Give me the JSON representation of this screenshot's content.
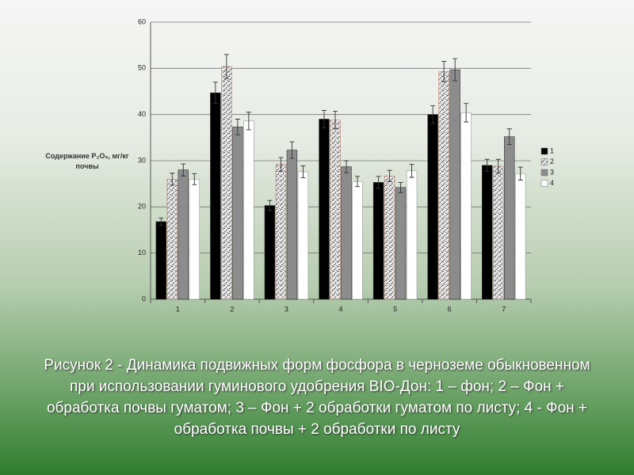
{
  "chart_data": {
    "type": "bar",
    "y_label": "Содержание P₂O₅, мг/кг почвы",
    "caption": "Рисунок 2 - Динамика подвижных форм фосфора в черноземе обыкновенном при использовании гуминового удобрения BIO-Дон: 1 – фон; 2 – Фон + обработка почвы гуматом;  3 – Фон + 2 обработки гуматом по листу; 4 - Фон + обработка почвы + 2 обработки по листу",
    "categories": [
      "1",
      "2",
      "3",
      "4",
      "5",
      "6",
      "7"
    ],
    "series": [
      {
        "name": "1",
        "color": "#000000",
        "values": [
          16.8,
          44.7,
          20.3,
          39,
          25.3,
          40,
          29
        ],
        "errors": [
          0.8,
          2.3,
          1.1,
          1.9,
          1.3,
          1.9,
          1.3
        ]
      },
      {
        "name": "2",
        "color": "#a8a8a8",
        "fill_pattern": "speckled",
        "values": [
          26,
          50.4,
          29.2,
          38.8,
          26.7,
          49.3,
          28.8
        ],
        "errors": [
          1.3,
          2.6,
          1.5,
          1.9,
          1.2,
          2.2,
          1.5
        ]
      },
      {
        "name": "3",
        "color": "#8c8c8c",
        "values": [
          28,
          37.3,
          32.3,
          28.7,
          24.2,
          49.7,
          35.2
        ],
        "errors": [
          1.3,
          1.7,
          1.8,
          1.3,
          1.1,
          2.4,
          1.7
        ]
      },
      {
        "name": "4",
        "color": "#ffffff",
        "values": [
          26,
          38.6,
          27.6,
          25.5,
          27.8,
          40.4,
          27.2
        ],
        "errors": [
          1.2,
          1.9,
          1.3,
          1.1,
          1.4,
          2.0,
          1.4
        ]
      }
    ],
    "ylim": [
      0,
      60
    ],
    "yticks": [
      0,
      10,
      20,
      30,
      40,
      50,
      60
    ],
    "grid": true,
    "legend": "right"
  }
}
